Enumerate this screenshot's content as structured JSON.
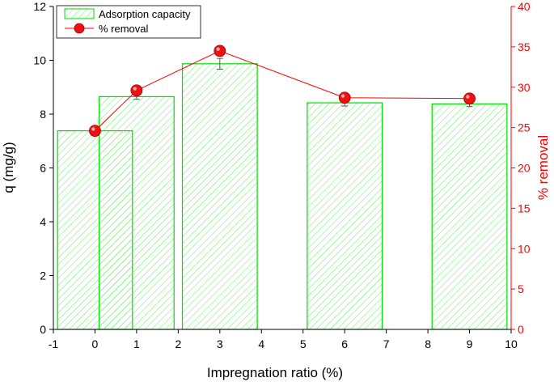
{
  "chart_data": {
    "type": "bar+line",
    "title": "",
    "xlabel": "Impregnation ratio (%)",
    "ylabel_left": "q (mg/g)",
    "ylabel_right": "% removal",
    "xlim": [
      -1,
      10
    ],
    "ylim_left": [
      0,
      12
    ],
    "ylim_right": [
      0,
      40
    ],
    "x_ticks": [
      -1,
      0,
      1,
      2,
      3,
      4,
      5,
      6,
      7,
      8,
      9,
      10
    ],
    "y_ticks_left": [
      0,
      2,
      4,
      6,
      8,
      10,
      12
    ],
    "y_ticks_right": [
      0,
      5,
      10,
      15,
      20,
      25,
      30,
      35,
      40
    ],
    "legend_position": "top-left",
    "bar_width": 1.8,
    "series": [
      {
        "name": "Adsorption capacity",
        "kind": "bar",
        "axis": "left",
        "color": "#00dd00",
        "x": [
          0,
          1,
          3,
          6,
          9
        ],
        "values": [
          7.38,
          8.65,
          9.87,
          8.42,
          8.38
        ],
        "errors": [
          0.12,
          0.1,
          0.2,
          0.12,
          0.1
        ]
      },
      {
        "name": "% removal",
        "kind": "line",
        "axis": "right",
        "color": "#ff0000",
        "x": [
          0,
          1,
          3,
          6,
          9
        ],
        "values": [
          24.6,
          29.6,
          34.5,
          28.7,
          28.6
        ]
      }
    ]
  }
}
